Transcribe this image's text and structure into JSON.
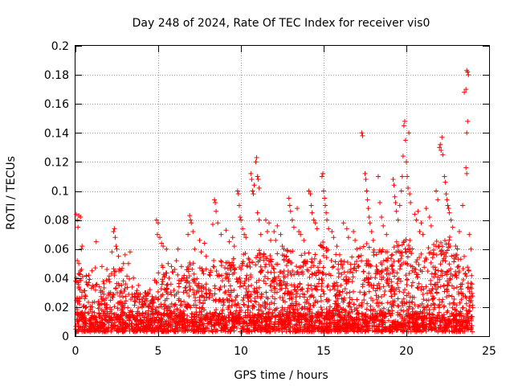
{
  "chart_data": {
    "type": "scatter",
    "title": "Day 248 of 2024, Rate Of TEC Index for receiver vis0",
    "xlabel": "GPS time / hours",
    "ylabel": "ROTI / TECUs",
    "xlim": [
      0,
      25
    ],
    "ylim": [
      0,
      0.2
    ],
    "x_ticks": [
      "0",
      "5",
      "10",
      "15",
      "20",
      "25"
    ],
    "y_ticks": [
      "0",
      "0.02",
      "0.04",
      "0.06",
      "0.08",
      "0.1",
      "0.12",
      "0.14",
      "0.16",
      "0.18",
      "0.2"
    ],
    "x_tick_values": [
      0,
      5,
      10,
      15,
      20,
      25
    ],
    "y_tick_values": [
      0,
      0.02,
      0.04,
      0.06,
      0.08,
      0.1,
      0.12,
      0.14,
      0.16,
      0.18,
      0.2
    ],
    "grid": true,
    "marker": "+",
    "color": "#ff0000",
    "series": [
      {
        "points": [
          [
            0.05,
            0.084
          ],
          [
            0.1,
            0.08
          ],
          [
            0.15,
            0.075
          ],
          [
            0.2,
            0.083
          ],
          [
            0.3,
            0.082
          ],
          [
            0.35,
            0.06
          ],
          [
            0.4,
            0.062
          ],
          [
            0.1,
            0.052
          ],
          [
            0.2,
            0.05
          ],
          [
            0.3,
            0.045
          ],
          [
            0.05,
            0.04
          ],
          [
            0.15,
            0.037
          ],
          [
            1.25,
            0.065
          ],
          [
            1.2,
            0.047
          ],
          [
            1.0,
            0.045
          ],
          [
            0.8,
            0.042
          ],
          [
            1.6,
            0.048
          ],
          [
            1.9,
            0.046
          ],
          [
            2.3,
            0.072
          ],
          [
            2.35,
            0.074
          ],
          [
            2.4,
            0.068
          ],
          [
            2.45,
            0.062
          ],
          [
            2.5,
            0.06
          ],
          [
            2.2,
            0.058
          ],
          [
            2.6,
            0.055
          ],
          [
            2.9,
            0.05
          ],
          [
            3.0,
            0.056
          ],
          [
            3.3,
            0.058
          ],
          [
            3.2,
            0.05
          ],
          [
            3.5,
            0.04
          ],
          [
            3.8,
            0.035
          ],
          [
            4.2,
            0.03
          ],
          [
            4.5,
            0.032
          ],
          [
            4.9,
            0.08
          ],
          [
            5.0,
            0.078
          ],
          [
            4.95,
            0.07
          ],
          [
            5.1,
            0.068
          ],
          [
            5.2,
            0.064
          ],
          [
            5.3,
            0.062
          ],
          [
            5.5,
            0.06
          ],
          [
            5.6,
            0.05
          ],
          [
            5.8,
            0.048
          ],
          [
            6.0,
            0.046
          ],
          [
            6.1,
            0.052
          ],
          [
            6.2,
            0.06
          ],
          [
            6.4,
            0.048
          ],
          [
            6.9,
            0.083
          ],
          [
            6.95,
            0.08
          ],
          [
            7.0,
            0.078
          ],
          [
            6.8,
            0.07
          ],
          [
            7.1,
            0.072
          ],
          [
            7.2,
            0.06
          ],
          [
            7.5,
            0.066
          ],
          [
            7.6,
            0.058
          ],
          [
            7.8,
            0.064
          ],
          [
            7.9,
            0.055
          ],
          [
            8.3,
            0.077
          ],
          [
            8.4,
            0.094
          ],
          [
            8.45,
            0.092
          ],
          [
            8.5,
            0.086
          ],
          [
            8.6,
            0.078
          ],
          [
            8.8,
            0.07
          ],
          [
            9.1,
            0.073
          ],
          [
            9.3,
            0.065
          ],
          [
            9.5,
            0.068
          ],
          [
            9.6,
            0.062
          ],
          [
            9.8,
            0.1
          ],
          [
            9.85,
            0.098
          ],
          [
            9.9,
            0.09
          ],
          [
            9.95,
            0.082
          ],
          [
            10.0,
            0.08
          ],
          [
            10.1,
            0.074
          ],
          [
            10.2,
            0.07
          ],
          [
            10.3,
            0.068
          ],
          [
            10.6,
            0.112
          ],
          [
            10.65,
            0.108
          ],
          [
            10.7,
            0.1
          ],
          [
            10.75,
            0.098
          ],
          [
            10.8,
            0.104
          ],
          [
            10.9,
            0.12
          ],
          [
            10.95,
            0.123
          ],
          [
            11.0,
            0.11
          ],
          [
            11.05,
            0.108
          ],
          [
            11.1,
            0.102
          ],
          [
            11.0,
            0.085
          ],
          [
            11.1,
            0.08
          ],
          [
            11.2,
            0.07
          ],
          [
            11.5,
            0.08
          ],
          [
            11.6,
            0.072
          ],
          [
            11.7,
            0.078
          ],
          [
            11.8,
            0.066
          ],
          [
            12.0,
            0.072
          ],
          [
            12.1,
            0.066
          ],
          [
            12.2,
            0.076
          ],
          [
            12.4,
            0.07
          ],
          [
            12.5,
            0.062
          ],
          [
            12.6,
            0.06
          ],
          [
            12.9,
            0.095
          ],
          [
            12.95,
            0.09
          ],
          [
            13.0,
            0.086
          ],
          [
            13.1,
            0.08
          ],
          [
            13.2,
            0.075
          ],
          [
            13.4,
            0.088
          ],
          [
            13.5,
            0.072
          ],
          [
            13.6,
            0.07
          ],
          [
            13.8,
            0.066
          ],
          [
            14.1,
            0.1
          ],
          [
            14.2,
            0.098
          ],
          [
            14.25,
            0.09
          ],
          [
            14.3,
            0.085
          ],
          [
            14.4,
            0.08
          ],
          [
            14.5,
            0.078
          ],
          [
            14.6,
            0.074
          ],
          [
            14.9,
            0.11
          ],
          [
            14.95,
            0.112
          ],
          [
            15.0,
            0.1
          ],
          [
            15.05,
            0.095
          ],
          [
            15.1,
            0.09
          ],
          [
            15.15,
            0.085
          ],
          [
            15.2,
            0.08
          ],
          [
            15.3,
            0.074
          ],
          [
            15.5,
            0.072
          ],
          [
            15.6,
            0.068
          ],
          [
            15.8,
            0.062
          ],
          [
            16.2,
            0.078
          ],
          [
            16.4,
            0.074
          ],
          [
            16.5,
            0.068
          ],
          [
            16.8,
            0.072
          ],
          [
            16.9,
            0.066
          ],
          [
            17.0,
            0.06
          ],
          [
            17.3,
            0.14
          ],
          [
            17.35,
            0.138
          ],
          [
            17.5,
            0.112
          ],
          [
            17.55,
            0.108
          ],
          [
            17.6,
            0.1
          ],
          [
            17.65,
            0.094
          ],
          [
            17.7,
            0.088
          ],
          [
            17.75,
            0.082
          ],
          [
            17.8,
            0.078
          ],
          [
            17.9,
            0.072
          ],
          [
            18.0,
            0.066
          ],
          [
            18.3,
            0.11
          ],
          [
            18.4,
            0.092
          ],
          [
            18.5,
            0.082
          ],
          [
            18.6,
            0.076
          ],
          [
            18.8,
            0.07
          ],
          [
            19.2,
            0.108
          ],
          [
            19.25,
            0.104
          ],
          [
            19.3,
            0.096
          ],
          [
            19.35,
            0.092
          ],
          [
            19.4,
            0.086
          ],
          [
            19.5,
            0.08
          ],
          [
            19.6,
            0.09
          ],
          [
            19.7,
            0.1
          ],
          [
            19.75,
            0.11
          ],
          [
            19.8,
            0.124
          ],
          [
            19.85,
            0.145
          ],
          [
            19.9,
            0.148
          ],
          [
            19.95,
            0.135
          ],
          [
            20.0,
            0.12
          ],
          [
            20.05,
            0.11
          ],
          [
            20.1,
            0.102
          ],
          [
            20.15,
            0.14
          ],
          [
            20.2,
            0.098
          ],
          [
            20.25,
            0.092
          ],
          [
            20.5,
            0.084
          ],
          [
            20.6,
            0.08
          ],
          [
            20.7,
            0.086
          ],
          [
            20.8,
            0.072
          ],
          [
            20.9,
            0.078
          ],
          [
            21.0,
            0.07
          ],
          [
            21.2,
            0.088
          ],
          [
            21.4,
            0.082
          ],
          [
            21.5,
            0.076
          ],
          [
            21.8,
            0.1
          ],
          [
            21.9,
            0.094
          ],
          [
            22.0,
            0.13
          ],
          [
            22.05,
            0.132
          ],
          [
            22.1,
            0.128
          ],
          [
            22.15,
            0.137
          ],
          [
            22.2,
            0.125
          ],
          [
            22.3,
            0.11
          ],
          [
            22.35,
            0.106
          ],
          [
            22.4,
            0.098
          ],
          [
            22.45,
            0.094
          ],
          [
            22.5,
            0.09
          ],
          [
            22.55,
            0.088
          ],
          [
            22.6,
            0.085
          ],
          [
            22.7,
            0.08
          ],
          [
            22.8,
            0.075
          ],
          [
            23.2,
            0.072
          ],
          [
            23.4,
            0.09
          ],
          [
            23.5,
            0.168
          ],
          [
            23.6,
            0.17
          ],
          [
            23.65,
            0.183
          ],
          [
            23.7,
            0.182
          ],
          [
            23.75,
            0.18
          ],
          [
            23.7,
            0.148
          ],
          [
            23.65,
            0.14
          ],
          [
            23.6,
            0.116
          ],
          [
            23.65,
            0.112
          ],
          [
            23.8,
            0.07
          ],
          [
            23.9,
            0.06
          ]
        ]
      }
    ],
    "envelope": {
      "x": [
        0,
        0.5,
        1,
        1.5,
        2,
        2.5,
        3,
        3.5,
        4,
        4.5,
        5,
        5.5,
        6,
        6.5,
        7,
        7.5,
        8,
        8.5,
        9,
        9.5,
        10,
        10.5,
        11,
        11.5,
        12,
        12.5,
        13,
        13.5,
        14,
        14.5,
        15,
        15.5,
        16,
        16.5,
        17,
        17.5,
        18,
        18.5,
        19,
        19.5,
        20,
        20.5,
        21,
        21.5,
        22,
        22.5,
        23,
        23.5,
        24
      ],
      "upper": [
        0.05,
        0.045,
        0.04,
        0.038,
        0.042,
        0.05,
        0.045,
        0.035,
        0.03,
        0.03,
        0.055,
        0.045,
        0.045,
        0.042,
        0.055,
        0.048,
        0.048,
        0.055,
        0.05,
        0.055,
        0.06,
        0.055,
        0.065,
        0.055,
        0.06,
        0.056,
        0.062,
        0.055,
        0.06,
        0.058,
        0.066,
        0.058,
        0.056,
        0.056,
        0.058,
        0.065,
        0.062,
        0.06,
        0.06,
        0.068,
        0.07,
        0.065,
        0.066,
        0.065,
        0.07,
        0.07,
        0.065,
        0.058,
        0.04
      ],
      "lower": 0.003
    }
  }
}
